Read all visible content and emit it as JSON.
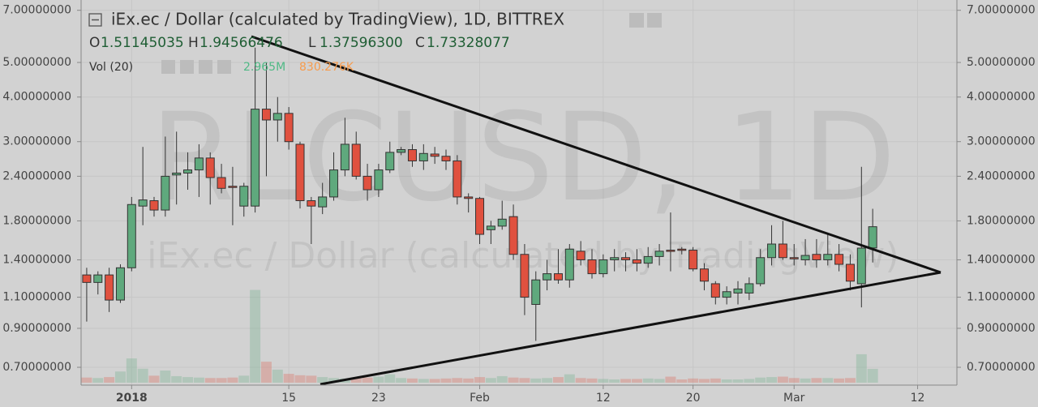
{
  "chart_data": {
    "type": "candlestick",
    "title": "iEx.ec / Dollar (calculated by TradingView), 1D, BITTREX",
    "watermark": "RLCUSD, 1D",
    "watermark_subtitle": "iEx.ec / Dollar (calculated by TradingView)",
    "ohlc_legend": [
      {
        "key": "O",
        "label": "1.51145035"
      },
      {
        "key": "H",
        "label": "1.94566476"
      },
      {
        "key": "L",
        "label": "1.37596300"
      },
      {
        "key": "C",
        "label": "1.73328077"
      }
    ],
    "volume_legend": {
      "title": "Vol (20)",
      "value": "2.965M",
      "average": "830.276K"
    },
    "x": [
      "2017-12-28",
      "2017-12-29",
      "2017-12-30",
      "2017-12-31",
      "2018-01-01",
      "2018-01-02",
      "2018-01-03",
      "2018-01-04",
      "2018-01-05",
      "2018-01-06",
      "2018-01-07",
      "2018-01-08",
      "2018-01-09",
      "2018-01-10",
      "2018-01-11",
      "2018-01-12",
      "2018-01-13",
      "2018-01-14",
      "2018-01-15",
      "2018-01-16",
      "2018-01-17",
      "2018-01-18",
      "2018-01-19",
      "2018-01-20",
      "2018-01-21",
      "2018-01-22",
      "2018-01-23",
      "2018-01-24",
      "2018-01-25",
      "2018-01-26",
      "2018-01-27",
      "2018-01-28",
      "2018-01-29",
      "2018-01-30",
      "2018-01-31",
      "2018-02-01",
      "2018-02-02",
      "2018-02-03",
      "2018-02-04",
      "2018-02-05",
      "2018-02-06",
      "2018-02-07",
      "2018-02-08",
      "2018-02-09",
      "2018-02-10",
      "2018-02-11",
      "2018-02-12",
      "2018-02-13",
      "2018-02-14",
      "2018-02-15",
      "2018-02-16",
      "2018-02-17",
      "2018-02-18",
      "2018-02-19",
      "2018-02-20",
      "2018-02-21",
      "2018-02-22",
      "2018-02-23",
      "2018-02-24",
      "2018-02-25",
      "2018-02-26",
      "2018-02-27",
      "2018-02-28",
      "2018-03-01",
      "2018-03-02",
      "2018-03-03",
      "2018-03-04",
      "2018-03-05",
      "2018-03-06",
      "2018-03-07",
      "2018-03-08"
    ],
    "open": [
      1.27,
      1.21,
      1.27,
      1.08,
      1.33,
      1.98,
      2.05,
      1.93,
      2.42,
      2.45,
      2.5,
      2.7,
      2.38,
      2.25,
      1.98,
      1.98,
      3.7,
      3.45,
      3.6,
      2.95,
      2.05,
      1.97,
      2.1,
      2.5,
      2.95,
      2.4,
      2.2,
      2.5,
      2.8,
      2.85,
      2.65,
      2.77,
      2.73,
      2.65,
      2.1,
      2.08,
      1.7,
      1.74,
      1.85,
      1.45,
      1.05,
      1.23,
      1.28,
      1.23,
      1.48,
      1.4,
      1.28,
      1.4,
      1.42,
      1.4,
      1.37,
      1.43,
      1.49,
      1.5,
      1.49,
      1.32,
      1.2,
      1.1,
      1.13,
      1.13,
      1.2,
      1.42,
      1.55,
      1.42,
      1.4,
      1.45,
      1.4,
      1.45,
      1.36,
      1.2,
      1.51145035
    ],
    "high": [
      1.33,
      1.3,
      1.33,
      1.36,
      2.1,
      2.9,
      2.1,
      3.1,
      3.2,
      2.8,
      2.95,
      2.8,
      2.6,
      2.55,
      2.3,
      5.5,
      5.0,
      4.0,
      3.75,
      3.0,
      2.1,
      2.3,
      2.8,
      3.5,
      3.2,
      2.6,
      2.6,
      3.0,
      2.9,
      2.95,
      2.95,
      2.9,
      2.85,
      2.75,
      2.15,
      2.1,
      1.8,
      2.05,
      2.0,
      1.55,
      1.3,
      1.4,
      1.5,
      1.55,
      1.58,
      1.5,
      1.45,
      1.5,
      1.47,
      1.5,
      1.52,
      1.55,
      1.9,
      1.52,
      1.52,
      1.37,
      1.22,
      1.18,
      1.22,
      1.25,
      1.5,
      1.75,
      1.8,
      1.55,
      1.6,
      1.6,
      1.65,
      1.55,
      1.45,
      2.55,
      1.94566476
    ],
    "low": [
      0.94,
      1.12,
      1.0,
      1.06,
      1.3,
      1.75,
      1.85,
      1.85,
      2.0,
      2.2,
      2.1,
      2.0,
      2.15,
      1.75,
      1.85,
      1.9,
      2.4,
      3.0,
      2.85,
      1.95,
      1.55,
      1.88,
      2.05,
      2.4,
      2.35,
      2.05,
      2.1,
      2.45,
      2.75,
      2.55,
      2.5,
      2.6,
      2.5,
      2.0,
      1.9,
      1.55,
      1.55,
      1.7,
      1.4,
      0.98,
      0.83,
      1.15,
      1.2,
      1.17,
      1.35,
      1.24,
      1.25,
      1.3,
      1.3,
      1.3,
      1.33,
      1.35,
      1.3,
      1.45,
      1.3,
      1.15,
      1.05,
      1.05,
      1.05,
      1.08,
      1.18,
      1.35,
      1.4,
      1.35,
      1.35,
      1.33,
      1.35,
      1.3,
      1.15,
      1.03,
      1.375963
    ],
    "close": [
      1.21,
      1.27,
      1.08,
      1.33,
      2.0,
      2.06,
      1.93,
      2.4,
      2.45,
      2.5,
      2.7,
      2.38,
      2.22,
      2.24,
      2.25,
      3.7,
      3.45,
      3.6,
      3.0,
      2.05,
      1.98,
      2.1,
      2.5,
      2.95,
      2.4,
      2.2,
      2.5,
      2.8,
      2.85,
      2.65,
      2.78,
      2.73,
      2.65,
      2.1,
      2.08,
      1.65,
      1.74,
      1.82,
      1.45,
      1.1,
      1.23,
      1.28,
      1.23,
      1.5,
      1.4,
      1.28,
      1.4,
      1.42,
      1.4,
      1.37,
      1.43,
      1.48,
      1.48,
      1.49,
      1.32,
      1.22,
      1.1,
      1.14,
      1.16,
      1.2,
      1.42,
      1.55,
      1.42,
      1.41,
      1.44,
      1.4,
      1.45,
      1.36,
      1.22,
      1.51,
      1.73328077
    ],
    "volume": [
      1.1,
      1.0,
      1.2,
      2.4,
      5.2,
      3.0,
      1.5,
      2.6,
      1.4,
      1.2,
      1.1,
      1.0,
      1.0,
      1.1,
      1.5,
      19.9,
      4.5,
      2.8,
      1.9,
      1.6,
      1.5,
      1.2,
      1.0,
      0.9,
      1.0,
      1.1,
      1.3,
      1.8,
      1.0,
      0.9,
      0.8,
      0.8,
      0.9,
      1.0,
      0.9,
      1.2,
      1.0,
      1.4,
      1.1,
      1.0,
      0.9,
      1.0,
      1.2,
      1.8,
      1.0,
      0.9,
      0.8,
      0.7,
      0.8,
      0.8,
      0.9,
      0.8,
      1.3,
      0.7,
      0.9,
      0.8,
      0.9,
      0.7,
      0.7,
      0.8,
      1.1,
      1.2,
      1.3,
      1.0,
      0.9,
      1.0,
      1.0,
      0.9,
      1.0,
      6.1,
      2.965
    ],
    "up_color": "#5fa97d",
    "down_color": "#e0513f",
    "volume_value_color": "#4fb985",
    "volume_average_color": "#f79b4c",
    "log_scale": true,
    "grid": true,
    "ylim": [
      0.624,
      7.48
    ],
    "yticks": [
      {
        "value": 7,
        "label": "7.00000000"
      },
      {
        "value": 5,
        "label": "5.00000000"
      },
      {
        "value": 4,
        "label": "4.00000000"
      },
      {
        "value": 3,
        "label": "3.00000000"
      },
      {
        "value": 2.4,
        "label": "2.40000000"
      },
      {
        "value": 1.8,
        "label": "1.80000000"
      },
      {
        "value": 1.4,
        "label": "1.40000000"
      },
      {
        "value": 1.1,
        "label": "1.10000000"
      },
      {
        "value": 0.9,
        "label": "0.90000000"
      },
      {
        "value": 0.7,
        "label": "0.70000000"
      }
    ],
    "xlim": [
      "2017-12-27T12:00Z",
      "2018-03-15T12:00Z"
    ],
    "xticks": [
      {
        "value": "2018-01-01",
        "label": "2018"
      },
      {
        "value": "2018-01-15",
        "label": "15"
      },
      {
        "value": "2018-01-23",
        "label": "23"
      },
      {
        "value": "2018-02-01",
        "label": "Feb"
      },
      {
        "value": "2018-02-12",
        "label": "12"
      },
      {
        "value": "2018-02-20",
        "label": "20"
      },
      {
        "value": "2018-03-01",
        "label": "Mar"
      },
      {
        "value": "2018-03-12",
        "label": "12"
      }
    ]
  }
}
